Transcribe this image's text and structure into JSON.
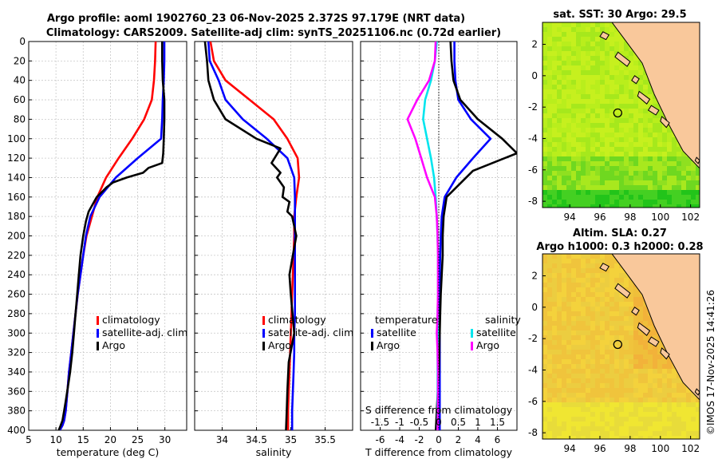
{
  "figure": {
    "title_line1": "Argo profile: aoml 1902760_23 06-Nov-2025 2.372S 97.179E (NRT data)",
    "title_line2": "Climatology: CARS2009. Satellite-adj clim: synTS_20251106.nc (0.72d earlier)",
    "side_text": "©IMOS 17-Nov-2025 14:41:26"
  },
  "colors": {
    "climatology": "#ff0000",
    "satellite": "#0000ff",
    "argo": "#000000",
    "t_diff_satellite": "#0000ff",
    "t_diff_argo": "#000000",
    "s_diff_satellite": "#00e5ee",
    "s_diff_argo": "#ff00ff",
    "land": "#f9c89b"
  },
  "chart_data": [
    {
      "type": "line",
      "id": "temperature",
      "xlabel": "temperature (deg C)",
      "ylabel": "",
      "xlim": [
        5,
        34
      ],
      "ylim": [
        0,
        400
      ],
      "xticks": [
        5,
        10,
        15,
        20,
        25,
        30
      ],
      "yticks": [
        0,
        20,
        40,
        60,
        80,
        100,
        120,
        140,
        160,
        180,
        200,
        220,
        240,
        260,
        280,
        300,
        320,
        340,
        360,
        380,
        400
      ],
      "legend": [
        "climatology",
        "satellite-adj. clim",
        "Argo"
      ],
      "series": [
        {
          "name": "climatology",
          "x": [
            28.3,
            28.2,
            28.0,
            27.6,
            26.2,
            24.0,
            21.5,
            19.2,
            17.6,
            16.6,
            15.6,
            15.0,
            14.5,
            14.0,
            13.6,
            13.2,
            12.8,
            12.4,
            12.1,
            11.8,
            11.5,
            11.2,
            10.9,
            10.6
          ],
          "y": [
            0,
            20,
            40,
            60,
            80,
            100,
            120,
            140,
            160,
            180,
            200,
            220,
            240,
            260,
            280,
            300,
            320,
            340,
            360,
            380,
            390,
            395,
            398,
            400
          ]
        },
        {
          "name": "satellite-adj. clim",
          "x": [
            29.9,
            29.9,
            29.8,
            29.6,
            29.5,
            29.3,
            25.0,
            21.0,
            18.0,
            16.3,
            15.5,
            15.0,
            14.5,
            14.0,
            13.6,
            13.2,
            12.8,
            12.4,
            12.1,
            11.8,
            11.5,
            11.2,
            10.9,
            10.7
          ],
          "y": [
            0,
            20,
            40,
            60,
            80,
            100,
            120,
            140,
            160,
            180,
            200,
            220,
            240,
            260,
            280,
            300,
            320,
            340,
            360,
            380,
            390,
            395,
            398,
            400
          ]
        },
        {
          "name": "Argo",
          "x": [
            29.5,
            29.5,
            29.6,
            29.9,
            29.9,
            29.8,
            29.7,
            29.5,
            27.0,
            26.0,
            23.0,
            20.5,
            19.3,
            17.5,
            16.0,
            15.5,
            15.0,
            14.5,
            14.2,
            13.9,
            13.6,
            13.3,
            13.0,
            12.6,
            12.2,
            11.8,
            11.5,
            11.2,
            10.8,
            10.5
          ],
          "y": [
            0,
            20,
            40,
            60,
            80,
            100,
            115,
            125,
            130,
            135,
            140,
            145,
            150,
            160,
            175,
            185,
            200,
            220,
            240,
            260,
            280,
            300,
            320,
            340,
            355,
            370,
            380,
            390,
            396,
            400
          ]
        }
      ]
    },
    {
      "type": "line",
      "id": "salinity",
      "xlabel": "salinity",
      "xlim": [
        33.6,
        35.9
      ],
      "ylim": [
        0,
        400
      ],
      "xticks": [
        34,
        34.5,
        35,
        35.5
      ],
      "legend": [
        "climatology",
        "satellite-adj. clim",
        "Argo"
      ],
      "series": [
        {
          "name": "climatology",
          "x": [
            33.83,
            33.88,
            34.05,
            34.4,
            34.75,
            34.95,
            35.1,
            35.12,
            35.08,
            35.05,
            35.05,
            35.04,
            35.03,
            35.02,
            35.01,
            35.0,
            34.99,
            34.98,
            34.97,
            34.96,
            34.96
          ],
          "y": [
            0,
            20,
            40,
            60,
            80,
            100,
            120,
            140,
            160,
            180,
            200,
            220,
            240,
            260,
            280,
            300,
            320,
            340,
            360,
            380,
            400
          ]
        },
        {
          "name": "satellite-adj. clim",
          "x": [
            33.8,
            33.82,
            33.95,
            34.05,
            34.3,
            34.65,
            34.95,
            35.05,
            35.06,
            35.06,
            35.06,
            35.06,
            35.06,
            35.06,
            35.06,
            35.05,
            35.05,
            35.04,
            35.03,
            35.02,
            35.02
          ],
          "y": [
            0,
            20,
            40,
            60,
            80,
            100,
            120,
            140,
            160,
            180,
            200,
            220,
            240,
            260,
            280,
            300,
            320,
            340,
            360,
            380,
            400
          ]
        },
        {
          "name": "Argo",
          "x": [
            33.75,
            33.78,
            33.8,
            33.88,
            34.05,
            34.5,
            34.85,
            34.72,
            34.85,
            34.8,
            34.9,
            34.88,
            34.98,
            34.95,
            35.02,
            35.08,
            35.03,
            34.98,
            35.0,
            35.05,
            34.97,
            34.95,
            34.94,
            34.93
          ],
          "y": [
            0,
            20,
            40,
            60,
            80,
            100,
            110,
            125,
            135,
            140,
            150,
            160,
            165,
            175,
            180,
            200,
            220,
            240,
            260,
            300,
            330,
            360,
            380,
            400
          ]
        }
      ]
    },
    {
      "type": "line",
      "id": "differences",
      "xlabel": "T difference from climatology",
      "top_label": "S difference from climatology",
      "xlim": [
        -8,
        8
      ],
      "ylim": [
        0,
        400
      ],
      "xticks": [
        -6,
        -4,
        -2,
        0,
        2,
        4,
        6
      ],
      "s_ticks": [
        -1.5,
        -1,
        -0.5,
        0,
        0.5,
        1,
        1.5
      ],
      "s_tick_labels": [
        "-1.5",
        "-1",
        "-0.5",
        "0",
        "0.5",
        "1",
        "1.5"
      ],
      "legend_group_t": "temperature",
      "legend_group_s": "salinity",
      "legend_t": [
        "satellite",
        "Argo"
      ],
      "legend_s": [
        "satellite",
        "Argo"
      ],
      "series": [
        {
          "name": "T satellite",
          "x": [
            1.6,
            1.6,
            1.7,
            2.0,
            3.3,
            5.3,
            3.5,
            1.8,
            0.6,
            0.3,
            0.2,
            0.15,
            0.1,
            0.1,
            0.1,
            0.1,
            0.1,
            0.1,
            0.1,
            0.1,
            0.1
          ],
          "y": [
            0,
            20,
            40,
            60,
            80,
            100,
            120,
            140,
            160,
            180,
            200,
            220,
            240,
            260,
            280,
            300,
            320,
            340,
            360,
            380,
            400
          ]
        },
        {
          "name": "T Argo",
          "x": [
            1.2,
            1.3,
            1.5,
            2.2,
            4.0,
            6.5,
            8.0,
            3.5,
            0.8,
            0.5,
            0.4,
            0.4,
            0.3,
            0.2,
            0.15,
            0.1,
            0.05,
            0.0,
            -0.1,
            -0.2,
            -0.3
          ],
          "y": [
            0,
            20,
            40,
            60,
            80,
            100,
            115,
            133,
            160,
            180,
            200,
            220,
            240,
            260,
            280,
            300,
            320,
            340,
            360,
            380,
            400
          ]
        },
        {
          "name": "S satellite",
          "x": [
            -0.05,
            -0.1,
            -0.2,
            -0.35,
            -0.4,
            -0.3,
            -0.2,
            -0.12,
            -0.08,
            -0.05,
            -0.03,
            -0.02,
            -0.02,
            -0.02,
            -0.03,
            -0.03,
            -0.03,
            -0.03,
            -0.03,
            -0.03,
            -0.03
          ],
          "y": [
            0,
            20,
            40,
            60,
            80,
            100,
            120,
            140,
            160,
            180,
            200,
            220,
            240,
            260,
            280,
            300,
            320,
            340,
            360,
            380,
            400
          ]
        },
        {
          "name": "S Argo",
          "x": [
            -0.08,
            -0.1,
            -0.25,
            -0.55,
            -0.8,
            -0.6,
            -0.45,
            -0.3,
            -0.1,
            -0.05,
            -0.03,
            -0.02,
            -0.02,
            -0.02,
            -0.03,
            -0.05,
            -0.03,
            -0.02,
            -0.02,
            -0.02,
            -0.03
          ],
          "y": [
            0,
            20,
            40,
            60,
            80,
            100,
            120,
            140,
            160,
            180,
            200,
            220,
            240,
            260,
            280,
            300,
            320,
            340,
            360,
            380,
            400
          ]
        }
      ]
    },
    {
      "type": "heatmap",
      "id": "sst_map",
      "title": "sat. SST: 30 Argo: 29.5",
      "xticks": [
        94,
        96,
        98,
        100,
        102
      ],
      "yticks": [
        2,
        0,
        -2,
        -4,
        -6,
        -8
      ],
      "xlim": [
        92.2,
        102.6
      ],
      "ylim": [
        -8.4,
        3.4
      ],
      "marker": {
        "lon": 97.179,
        "lat": -2.372
      }
    },
    {
      "type": "heatmap",
      "id": "sla_map",
      "title_line1": "Altim. SLA: 0.27",
      "title_line2": "Argo h1000: 0.3 h2000: 0.28",
      "xticks": [
        94,
        96,
        98,
        100,
        102
      ],
      "yticks": [
        2,
        0,
        -2,
        -4,
        -6,
        -8
      ],
      "xlim": [
        92.2,
        102.6
      ],
      "ylim": [
        -8.4,
        3.4
      ],
      "marker": {
        "lon": 97.179,
        "lat": -2.372
      }
    }
  ]
}
